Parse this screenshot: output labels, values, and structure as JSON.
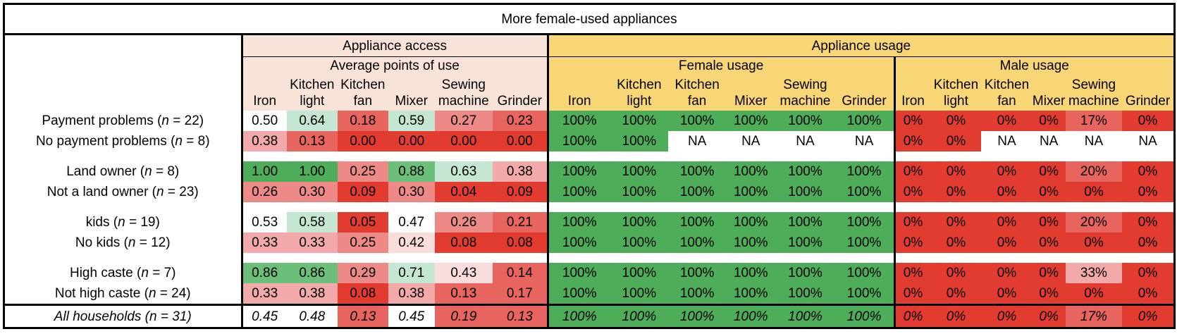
{
  "title": "More female-used appliances",
  "group_access": "Appliance access",
  "group_usage": "Appliance usage",
  "sub_access": "Average points of use",
  "sub_female": "Female usage",
  "sub_male": "Male usage",
  "columns": [
    "Iron",
    "Kitchen light",
    "Kitchen fan",
    "Mixer",
    "Sewing machine",
    "Grinder"
  ],
  "colors": {
    "green_dark": "#4dad58",
    "green_mid": "#6cbf7a",
    "green_light": "#c5e6d3",
    "white": "#ffffff",
    "pink_pale": "#f9dcdc",
    "pink_light": "#f1aaa9",
    "pink": "#ed8a87",
    "red_mid": "#e8645f",
    "red": "#e23b30",
    "header_access": "#f8e3d9",
    "header_usage": "#f8d675"
  },
  "rows": [
    {
      "label_pre": "Payment problems (",
      "label_n": "n",
      "label_post": " = 22)",
      "access": [
        {
          "v": "0.50",
          "c": "white"
        },
        {
          "v": "0.64",
          "c": "green_light"
        },
        {
          "v": "0.18",
          "c": "red_mid"
        },
        {
          "v": "0.59",
          "c": "green_light"
        },
        {
          "v": "0.27",
          "c": "pink"
        },
        {
          "v": "0.23",
          "c": "red_mid"
        }
      ],
      "female": [
        {
          "v": "100%",
          "c": "green_dark"
        },
        {
          "v": "100%",
          "c": "green_dark"
        },
        {
          "v": "100%",
          "c": "green_dark"
        },
        {
          "v": "100%",
          "c": "green_dark"
        },
        {
          "v": "100%",
          "c": "green_dark"
        },
        {
          "v": "100%",
          "c": "green_dark"
        }
      ],
      "male": [
        {
          "v": "0%",
          "c": "red"
        },
        {
          "v": "0%",
          "c": "red"
        },
        {
          "v": "0%",
          "c": "red"
        },
        {
          "v": "0%",
          "c": "red"
        },
        {
          "v": "17%",
          "c": "red_mid"
        },
        {
          "v": "0%",
          "c": "red"
        }
      ]
    },
    {
      "label_pre": "No payment problems (",
      "label_n": "n",
      "label_post": " = 8)",
      "access": [
        {
          "v": "0.38",
          "c": "pink_light"
        },
        {
          "v": "0.13",
          "c": "red_mid"
        },
        {
          "v": "0.00",
          "c": "red"
        },
        {
          "v": "0.00",
          "c": "red"
        },
        {
          "v": "0.00",
          "c": "red"
        },
        {
          "v": "0.00",
          "c": "red"
        }
      ],
      "female": [
        {
          "v": "100%",
          "c": "green_dark"
        },
        {
          "v": "100%",
          "c": "green_dark"
        },
        {
          "v": "NA",
          "c": "white"
        },
        {
          "v": "NA",
          "c": "white"
        },
        {
          "v": "NA",
          "c": "white"
        },
        {
          "v": "NA",
          "c": "white"
        }
      ],
      "male": [
        {
          "v": "0%",
          "c": "red"
        },
        {
          "v": "0%",
          "c": "red"
        },
        {
          "v": "NA",
          "c": "white"
        },
        {
          "v": "NA",
          "c": "white"
        },
        {
          "v": "NA",
          "c": "white"
        },
        {
          "v": "NA",
          "c": "white"
        }
      ]
    },
    {
      "label_pre": "Land owner (",
      "label_n": "n",
      "label_post": " = 8)",
      "access": [
        {
          "v": "1.00",
          "c": "green_dark"
        },
        {
          "v": "1.00",
          "c": "green_dark"
        },
        {
          "v": "0.25",
          "c": "pink"
        },
        {
          "v": "0.88",
          "c": "green_mid"
        },
        {
          "v": "0.63",
          "c": "green_light"
        },
        {
          "v": "0.38",
          "c": "pink_light"
        }
      ],
      "female": [
        {
          "v": "100%",
          "c": "green_dark"
        },
        {
          "v": "100%",
          "c": "green_dark"
        },
        {
          "v": "100%",
          "c": "green_dark"
        },
        {
          "v": "100%",
          "c": "green_dark"
        },
        {
          "v": "100%",
          "c": "green_dark"
        },
        {
          "v": "100%",
          "c": "green_dark"
        }
      ],
      "male": [
        {
          "v": "0%",
          "c": "red"
        },
        {
          "v": "0%",
          "c": "red"
        },
        {
          "v": "0%",
          "c": "red"
        },
        {
          "v": "0%",
          "c": "red"
        },
        {
          "v": "20%",
          "c": "red_mid"
        },
        {
          "v": "0%",
          "c": "red"
        }
      ]
    },
    {
      "label_pre": "Not a land owner (",
      "label_n": "n",
      "label_post": " = 23)",
      "access": [
        {
          "v": "0.26",
          "c": "pink"
        },
        {
          "v": "0.30",
          "c": "pink"
        },
        {
          "v": "0.09",
          "c": "red"
        },
        {
          "v": "0.30",
          "c": "pink"
        },
        {
          "v": "0.04",
          "c": "red"
        },
        {
          "v": "0.09",
          "c": "red"
        }
      ],
      "female": [
        {
          "v": "100%",
          "c": "green_dark"
        },
        {
          "v": "100%",
          "c": "green_dark"
        },
        {
          "v": "100%",
          "c": "green_dark"
        },
        {
          "v": "100%",
          "c": "green_dark"
        },
        {
          "v": "100%",
          "c": "green_dark"
        },
        {
          "v": "100%",
          "c": "green_dark"
        }
      ],
      "male": [
        {
          "v": "0%",
          "c": "red"
        },
        {
          "v": "0%",
          "c": "red"
        },
        {
          "v": "0%",
          "c": "red"
        },
        {
          "v": "0%",
          "c": "red"
        },
        {
          "v": "0%",
          "c": "red"
        },
        {
          "v": "0%",
          "c": "red"
        }
      ]
    },
    {
      "label_pre": "kids (",
      "label_n": "n",
      "label_post": " = 19)",
      "access": [
        {
          "v": "0.53",
          "c": "white"
        },
        {
          "v": "0.58",
          "c": "green_light"
        },
        {
          "v": "0.05",
          "c": "red"
        },
        {
          "v": "0.47",
          "c": "white"
        },
        {
          "v": "0.26",
          "c": "pink"
        },
        {
          "v": "0.21",
          "c": "red_mid"
        }
      ],
      "female": [
        {
          "v": "100%",
          "c": "green_dark"
        },
        {
          "v": "100%",
          "c": "green_dark"
        },
        {
          "v": "100%",
          "c": "green_dark"
        },
        {
          "v": "100%",
          "c": "green_dark"
        },
        {
          "v": "100%",
          "c": "green_dark"
        },
        {
          "v": "100%",
          "c": "green_dark"
        }
      ],
      "male": [
        {
          "v": "0%",
          "c": "red"
        },
        {
          "v": "0%",
          "c": "red"
        },
        {
          "v": "0%",
          "c": "red"
        },
        {
          "v": "0%",
          "c": "red"
        },
        {
          "v": "20%",
          "c": "red_mid"
        },
        {
          "v": "0%",
          "c": "red"
        }
      ]
    },
    {
      "label_pre": "No kids (",
      "label_n": "n",
      "label_post": " = 12)",
      "access": [
        {
          "v": "0.33",
          "c": "pink_light"
        },
        {
          "v": "0.33",
          "c": "pink_light"
        },
        {
          "v": "0.25",
          "c": "pink"
        },
        {
          "v": "0.42",
          "c": "pink_pale"
        },
        {
          "v": "0.08",
          "c": "red"
        },
        {
          "v": "0.08",
          "c": "red"
        }
      ],
      "female": [
        {
          "v": "100%",
          "c": "green_dark"
        },
        {
          "v": "100%",
          "c": "green_dark"
        },
        {
          "v": "100%",
          "c": "green_dark"
        },
        {
          "v": "100%",
          "c": "green_dark"
        },
        {
          "v": "100%",
          "c": "green_dark"
        },
        {
          "v": "100%",
          "c": "green_dark"
        }
      ],
      "male": [
        {
          "v": "0%",
          "c": "red"
        },
        {
          "v": "0%",
          "c": "red"
        },
        {
          "v": "0%",
          "c": "red"
        },
        {
          "v": "0%",
          "c": "red"
        },
        {
          "v": "0%",
          "c": "red"
        },
        {
          "v": "0%",
          "c": "red"
        }
      ]
    },
    {
      "label_pre": "High caste (",
      "label_n": "n",
      "label_post": " = 7)",
      "access": [
        {
          "v": "0.86",
          "c": "green_mid"
        },
        {
          "v": "0.86",
          "c": "green_mid"
        },
        {
          "v": "0.29",
          "c": "pink"
        },
        {
          "v": "0.71",
          "c": "green_light"
        },
        {
          "v": "0.43",
          "c": "pink_pale"
        },
        {
          "v": "0.14",
          "c": "red_mid"
        }
      ],
      "female": [
        {
          "v": "100%",
          "c": "green_dark"
        },
        {
          "v": "100%",
          "c": "green_dark"
        },
        {
          "v": "100%",
          "c": "green_dark"
        },
        {
          "v": "100%",
          "c": "green_dark"
        },
        {
          "v": "100%",
          "c": "green_dark"
        },
        {
          "v": "100%",
          "c": "green_dark"
        }
      ],
      "male": [
        {
          "v": "0%",
          "c": "red"
        },
        {
          "v": "0%",
          "c": "red"
        },
        {
          "v": "0%",
          "c": "red"
        },
        {
          "v": "0%",
          "c": "red"
        },
        {
          "v": "33%",
          "c": "pink_light"
        },
        {
          "v": "0%",
          "c": "red"
        }
      ]
    },
    {
      "label_pre": "Not high caste (",
      "label_n": "n",
      "label_post": " = 24)",
      "access": [
        {
          "v": "0.33",
          "c": "pink_light"
        },
        {
          "v": "0.38",
          "c": "pink_light"
        },
        {
          "v": "0.08",
          "c": "red"
        },
        {
          "v": "0.38",
          "c": "pink_light"
        },
        {
          "v": "0.13",
          "c": "red_mid"
        },
        {
          "v": "0.17",
          "c": "red_mid"
        }
      ],
      "female": [
        {
          "v": "100%",
          "c": "green_dark"
        },
        {
          "v": "100%",
          "c": "green_dark"
        },
        {
          "v": "100%",
          "c": "green_dark"
        },
        {
          "v": "100%",
          "c": "green_dark"
        },
        {
          "v": "100%",
          "c": "green_dark"
        },
        {
          "v": "100%",
          "c": "green_dark"
        }
      ],
      "male": [
        {
          "v": "0%",
          "c": "red"
        },
        {
          "v": "0%",
          "c": "red"
        },
        {
          "v": "0%",
          "c": "red"
        },
        {
          "v": "0%",
          "c": "red"
        },
        {
          "v": "0%",
          "c": "red"
        },
        {
          "v": "0%",
          "c": "red"
        }
      ]
    },
    {
      "label_pre": "All households (",
      "label_n": "n",
      "label_post": " = 31)",
      "access": [
        {
          "v": "0.45",
          "c": "white"
        },
        {
          "v": "0.48",
          "c": "white"
        },
        {
          "v": "0.13",
          "c": "red_mid"
        },
        {
          "v": "0.45",
          "c": "white"
        },
        {
          "v": "0.19",
          "c": "red_mid"
        },
        {
          "v": "0.13",
          "c": "red_mid"
        }
      ],
      "female": [
        {
          "v": "100%",
          "c": "green_dark"
        },
        {
          "v": "100%",
          "c": "green_dark"
        },
        {
          "v": "100%",
          "c": "green_dark"
        },
        {
          "v": "100%",
          "c": "green_dark"
        },
        {
          "v": "100%",
          "c": "green_dark"
        },
        {
          "v": "100%",
          "c": "green_dark"
        }
      ],
      "male": [
        {
          "v": "0%",
          "c": "red"
        },
        {
          "v": "0%",
          "c": "red"
        },
        {
          "v": "0%",
          "c": "red"
        },
        {
          "v": "0%",
          "c": "red"
        },
        {
          "v": "17%",
          "c": "red_mid"
        },
        {
          "v": "0%",
          "c": "red"
        }
      ]
    }
  ]
}
